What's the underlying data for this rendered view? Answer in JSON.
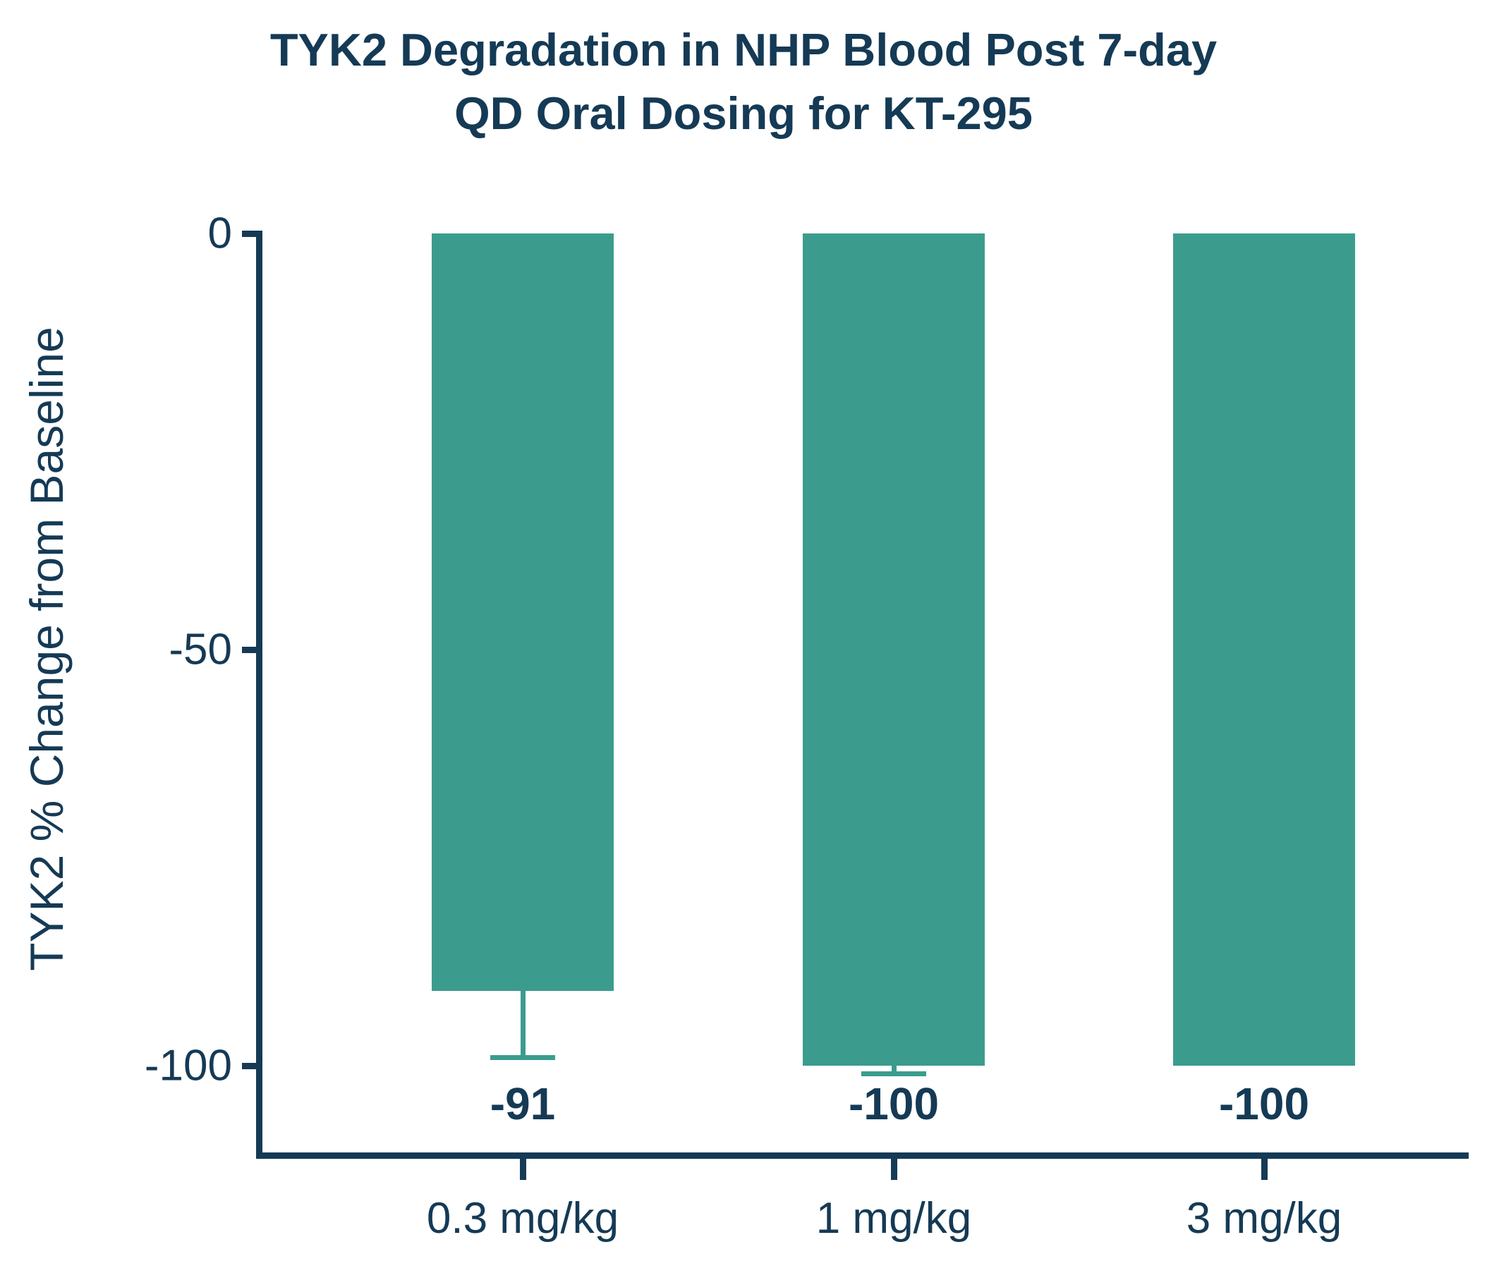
{
  "chart_data": {
    "type": "bar",
    "title_line1": "TYK2 Degradation in NHP Blood Post 7-day",
    "title_line2": "QD Oral Dosing for KT-295",
    "ylabel": "TYK2 % Change from Baseline",
    "categories": [
      "0.3 mg/kg",
      "1 mg/kg",
      "3 mg/kg"
    ],
    "values": [
      -91,
      -100,
      -100
    ],
    "errors": [
      8,
      1,
      0
    ],
    "value_labels": [
      "-91",
      "-100",
      "-100"
    ],
    "y_ticks": [
      0,
      -50,
      -100
    ],
    "y_tick_labels": [
      "0",
      "-50",
      "-100"
    ],
    "ylim": [
      -110,
      0
    ],
    "grid": false,
    "legend_position": "none",
    "bar_color": "#3b9c8e",
    "axis_color": "#153a55",
    "text_color": "#153a55"
  }
}
